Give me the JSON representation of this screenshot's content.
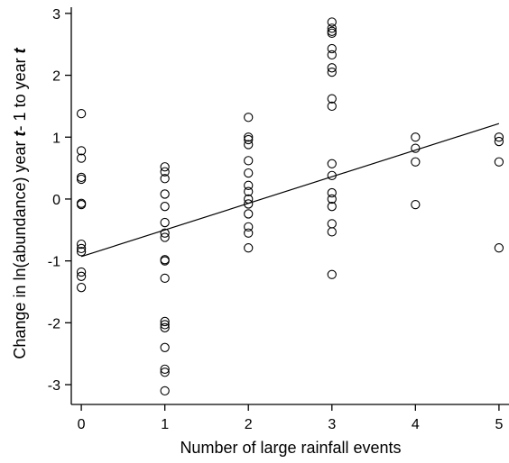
{
  "chart_data": {
    "type": "scatter",
    "xlabel": "Number of large rainfall events",
    "ylabel": {
      "parts": [
        {
          "text": "Change in ln(abundance) year ",
          "italic": false
        },
        {
          "text": "t",
          "italic": true
        },
        {
          "text": "- 1 to year ",
          "italic": false
        },
        {
          "text": "t",
          "italic": true
        }
      ]
    },
    "xlim": [
      -0.12,
      5.12
    ],
    "ylim": [
      -3.32,
      3.1
    ],
    "xticks": [
      "0",
      "1",
      "2",
      "3",
      "4",
      "5"
    ],
    "yticks": [
      "-3",
      "-2",
      "-1",
      "0",
      "1",
      "2",
      "3"
    ],
    "grid": false,
    "legend": "none",
    "marker": "open-circle",
    "points": [
      [
        0,
        1.38
      ],
      [
        0,
        0.78
      ],
      [
        0,
        0.66
      ],
      [
        0,
        0.35
      ],
      [
        0,
        0.32
      ],
      [
        0,
        -0.07
      ],
      [
        0,
        -0.09
      ],
      [
        0,
        -0.73
      ],
      [
        0,
        -0.8
      ],
      [
        0,
        -0.85
      ],
      [
        0,
        -1.18
      ],
      [
        0,
        -1.25
      ],
      [
        0,
        -1.43
      ],
      [
        1,
        0.52
      ],
      [
        1,
        0.44
      ],
      [
        1,
        0.33
      ],
      [
        1,
        0.08
      ],
      [
        1,
        -0.12
      ],
      [
        1,
        -0.38
      ],
      [
        1,
        -0.55
      ],
      [
        1,
        -0.62
      ],
      [
        1,
        -0.98
      ],
      [
        1,
        -1.0
      ],
      [
        1,
        -1.28
      ],
      [
        1,
        -1.98
      ],
      [
        1,
        -2.03
      ],
      [
        1,
        -2.08
      ],
      [
        1,
        -2.4
      ],
      [
        1,
        -2.75
      ],
      [
        1,
        -2.8
      ],
      [
        1,
        -3.1
      ],
      [
        2,
        1.32
      ],
      [
        2,
        1.0
      ],
      [
        2,
        0.96
      ],
      [
        2,
        0.88
      ],
      [
        2,
        0.62
      ],
      [
        2,
        0.42
      ],
      [
        2,
        0.22
      ],
      [
        2,
        0.12
      ],
      [
        2,
        0.0
      ],
      [
        2,
        -0.08
      ],
      [
        2,
        -0.24
      ],
      [
        2,
        -0.45
      ],
      [
        2,
        -0.55
      ],
      [
        2,
        -0.79
      ],
      [
        3,
        2.86
      ],
      [
        3,
        2.76
      ],
      [
        3,
        2.71
      ],
      [
        3,
        2.68
      ],
      [
        3,
        2.43
      ],
      [
        3,
        2.33
      ],
      [
        3,
        2.12
      ],
      [
        3,
        2.05
      ],
      [
        3,
        1.62
      ],
      [
        3,
        1.5
      ],
      [
        3,
        0.57
      ],
      [
        3,
        0.38
      ],
      [
        3,
        0.1
      ],
      [
        3,
        0.0
      ],
      [
        3,
        -0.12
      ],
      [
        3,
        -0.4
      ],
      [
        3,
        -0.53
      ],
      [
        3,
        -1.22
      ],
      [
        4,
        1.0
      ],
      [
        4,
        0.82
      ],
      [
        4,
        0.6
      ],
      [
        4,
        -0.09
      ],
      [
        5,
        1.0
      ],
      [
        5,
        0.93
      ],
      [
        5,
        0.6
      ],
      [
        5,
        -0.79
      ]
    ],
    "fit_line": {
      "x": [
        0,
        5
      ],
      "y": [
        -0.93,
        1.22
      ]
    }
  }
}
